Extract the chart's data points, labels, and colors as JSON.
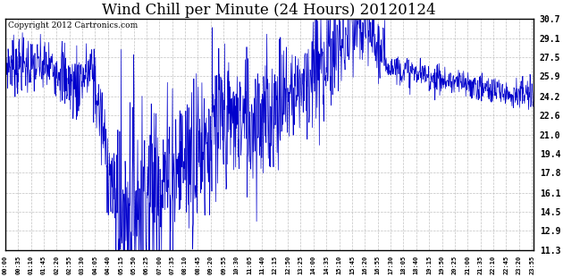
{
  "title": "Wind Chill per Minute (24 Hours) 20120124",
  "copyright": "Copyright 2012 Cartronics.com",
  "y_ticks": [
    11.3,
    12.9,
    14.5,
    16.1,
    17.8,
    19.4,
    21.0,
    22.6,
    24.2,
    25.9,
    27.5,
    29.1,
    30.7
  ],
  "ylim": [
    11.3,
    30.7
  ],
  "line_color": "#0000cc",
  "bg_color": "#ffffff",
  "grid_color": "#bbbbbb",
  "title_fontsize": 12,
  "copyright_fontsize": 6.5
}
